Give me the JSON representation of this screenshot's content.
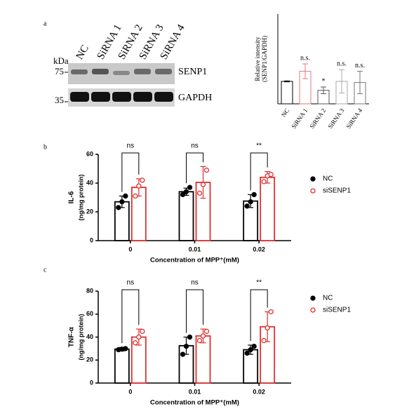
{
  "blot": {
    "panel_label": "a",
    "lanes": [
      "NC",
      "SiRNA 1",
      "SiRNA 2",
      "SiRNA 3",
      "SiRNA 4"
    ],
    "size_unit": "kDa",
    "sizes": [
      "75",
      "35"
    ],
    "proteins": [
      "SENP1",
      "GAPDH"
    ]
  },
  "chart_data": [
    {
      "type": "bar",
      "ylabel": [
        "Relative intensity",
        "(SENP1/GAPDH)"
      ],
      "categories": [
        "NC",
        "SiRNA 1",
        "SiRNA 2",
        "SiRNA 3",
        "SiRNA 4"
      ],
      "values": [
        1.0,
        1.45,
        0.6,
        1.0,
        0.95
      ],
      "errors": [
        0.02,
        0.33,
        0.15,
        0.52,
        0.5
      ],
      "colors": [
        "#000000",
        "#e07a7a",
        "#555555",
        "#aaaaaa",
        "#777777"
      ],
      "annotations": [
        "n.s.",
        "*",
        "n.s.",
        "n.s."
      ],
      "annotation_at": [
        1,
        2,
        3,
        4
      ],
      "ylim": [
        0,
        4
      ]
    },
    {
      "type": "grouped_bar",
      "panel_label": "b",
      "ylabel": [
        "IL-6",
        "(ng/mg protein)"
      ],
      "xlabel": "Concentration of MPP⁺(mM)",
      "categories": [
        "0",
        "0.01",
        "0.02"
      ],
      "series": [
        {
          "name": "NC",
          "color": "#000000",
          "marker_fill": true,
          "values": [
            27,
            34,
            27.5
          ],
          "errors": [
            4,
            2.5,
            4.5
          ],
          "points": [
            [
              23,
              27,
              31
            ],
            [
              32,
              34,
              37
            ],
            [
              24,
              27,
              32
            ]
          ]
        },
        {
          "name": "siSENP1",
          "color": "#e0302e",
          "marker_fill": false,
          "values": [
            37,
            40.5,
            44
          ],
          "errors": [
            6,
            11,
            4
          ],
          "points": [
            [
              31,
              38,
              42
            ],
            [
              33,
              39,
              49
            ],
            [
              41,
              45,
              46
            ]
          ]
        }
      ],
      "annotations": [
        "ns",
        "ns",
        "**"
      ],
      "ylim": [
        0,
        60
      ],
      "yticks": [
        0,
        20,
        40,
        60
      ]
    },
    {
      "type": "grouped_bar",
      "panel_label": "c",
      "ylabel": [
        "TNF-α",
        "(ng/mg protein)"
      ],
      "xlabel": "Concentration of MPP⁺(mM)",
      "categories": [
        "0",
        "0.01",
        "0.02"
      ],
      "series": [
        {
          "name": "NC",
          "color": "#000000",
          "marker_fill": true,
          "values": [
            29.5,
            32.5,
            29
          ],
          "errors": [
            1.5,
            7.5,
            4
          ],
          "points": [
            [
              29,
              29.5,
              30
            ],
            [
              25,
              32,
              40
            ],
            [
              26,
              29,
              32
            ]
          ]
        },
        {
          "name": "siSENP1",
          "color": "#e0302e",
          "marker_fill": false,
          "values": [
            40,
            41,
            49
          ],
          "errors": [
            7,
            6,
            13
          ],
          "points": [
            [
              35,
              40,
              45
            ],
            [
              37,
              41,
              45
            ],
            [
              37,
              48,
              62
            ]
          ]
        }
      ],
      "annotations": [
        "ns",
        "ns",
        "**"
      ],
      "ylim": [
        0,
        80
      ],
      "yticks": [
        0,
        20,
        40,
        60,
        80
      ]
    }
  ]
}
